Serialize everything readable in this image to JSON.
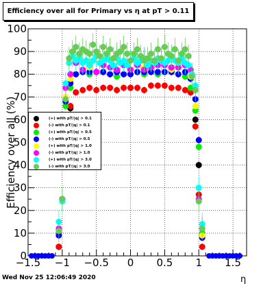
{
  "title": "Efficiency over all for Primary vs   η at pT > 0.11",
  "footer": "Wed Nov 25 12:06:49 2020",
  "chart_data": {
    "type": "scatter",
    "title": "Efficiency over all for Primary vs   η at pT > 0.11",
    "xlabel": "η",
    "ylabel": "Efficiency over all (%)",
    "xlim": [
      -1.5,
      1.7
    ],
    "ylim": [
      0,
      100
    ],
    "xticks": [
      -1.5,
      -1,
      -0.5,
      0,
      0.5,
      1,
      1.5
    ],
    "xtick_labels": [
      "−1.5",
      "−1",
      "−0.5",
      "0",
      "0.5",
      "1",
      "1.5"
    ],
    "yticks": [
      0,
      10,
      20,
      30,
      40,
      50,
      60,
      70,
      80,
      90,
      100
    ],
    "ytick_labels": [
      "0",
      "10",
      "20",
      "30",
      "40",
      "50",
      "60",
      "70",
      "80",
      "90",
      "100"
    ],
    "grid": true,
    "legend_position": "middle-left",
    "series": [
      {
        "name": "(+) with pT/|q| > 0.1",
        "color": "#000000",
        "x": [
          -1.05,
          -1.0,
          -0.95,
          -0.88,
          0.0,
          0.88,
          0.95,
          1.0,
          1.05
        ],
        "y": [
          4,
          25,
          58,
          65,
          74,
          72,
          60,
          40,
          9
        ]
      },
      {
        "name": "(-) with pT/|q| > 0.1",
        "color": "#ff0000",
        "x": [
          -1.05,
          -1.0,
          -0.95,
          -0.88,
          -0.8,
          -0.7,
          -0.6,
          -0.5,
          -0.4,
          -0.3,
          -0.2,
          -0.1,
          0.0,
          0.1,
          0.2,
          0.3,
          0.4,
          0.5,
          0.6,
          0.7,
          0.8,
          0.88,
          0.95,
          1.0,
          1.05
        ],
        "y": [
          4,
          25,
          61,
          66,
          72,
          73,
          74,
          73,
          74,
          74,
          73,
          74,
          74,
          74,
          73,
          75,
          75,
          75,
          74,
          74,
          73,
          72,
          57,
          27,
          4
        ]
      },
      {
        "name": "(+) with pT/|q| > 0.5",
        "color": "#00ee00",
        "x": [
          -1.05,
          -1.0,
          -0.95,
          -0.88,
          -0.8,
          -0.6,
          -0.4,
          -0.2,
          0.0,
          0.2,
          0.4,
          0.6,
          0.8,
          0.88,
          0.95,
          1.0,
          1.05
        ],
        "y": [
          10,
          24,
          66,
          74,
          80,
          80,
          81,
          79,
          80,
          80,
          80,
          81,
          79,
          74,
          64,
          48,
          10
        ]
      },
      {
        "name": "(-) with pT/|q| > 0.5",
        "color": "#0000ff",
        "x": [
          -1.05,
          -1.0,
          -0.95,
          -0.88,
          -0.8,
          -0.7,
          -0.6,
          -0.5,
          -0.4,
          -0.3,
          -0.2,
          -0.1,
          0.0,
          0.1,
          0.2,
          0.3,
          0.4,
          0.5,
          0.6,
          0.7,
          0.8,
          0.88,
          0.95,
          1.0,
          1.05
        ],
        "y": [
          9,
          25,
          68,
          76,
          80,
          81,
          81,
          81,
          81,
          80,
          81,
          80,
          80,
          81,
          81,
          81,
          81,
          81,
          81,
          80,
          81,
          78,
          69,
          51,
          8
        ]
      },
      {
        "name": "(+) with pT/|q| > 1.0",
        "color": "#ffff00",
        "x": [
          -1.05,
          -0.95,
          -0.88,
          -0.6,
          -0.2,
          0.2,
          0.6,
          0.88,
          0.95,
          1.05
        ],
        "y": [
          12,
          70,
          78,
          83,
          82,
          83,
          82,
          79,
          66,
          9
        ]
      },
      {
        "name": "(-) with pT/|q| > 1.0",
        "color": "#ff00ff",
        "x": [
          -1.05,
          -1.0,
          -0.95,
          -0.88,
          -0.8,
          -0.7,
          -0.6,
          -0.5,
          -0.4,
          -0.3,
          -0.2,
          -0.1,
          0.0,
          0.1,
          0.2,
          0.3,
          0.4,
          0.5,
          0.6,
          0.7,
          0.8,
          0.88,
          0.95,
          1.0,
          1.05
        ],
        "y": [
          12,
          25,
          74,
          80,
          85,
          82,
          84,
          81,
          84,
          83,
          82,
          84,
          82,
          84,
          82,
          83,
          84,
          84,
          83,
          83,
          84,
          82,
          73,
          25,
          12
        ]
      },
      {
        "name": "(+) with pT/|q| > 3.0",
        "color": "#00ffff",
        "x": [
          -1.05,
          -1.0,
          -0.95,
          -0.9,
          -0.85,
          -0.8,
          -0.75,
          -0.7,
          -0.65,
          -0.6,
          -0.55,
          -0.5,
          -0.45,
          -0.4,
          -0.35,
          -0.3,
          -0.25,
          -0.2,
          -0.15,
          -0.1,
          -0.05,
          0.0,
          0.05,
          0.1,
          0.15,
          0.2,
          0.25,
          0.3,
          0.35,
          0.4,
          0.45,
          0.5,
          0.55,
          0.6,
          0.65,
          0.7,
          0.75,
          0.8,
          0.85,
          0.9,
          0.95,
          1.0,
          1.05
        ],
        "y": [
          15,
          24,
          76,
          85,
          88,
          86,
          87,
          85,
          86,
          84,
          86,
          88,
          85,
          86,
          87,
          86,
          84,
          87,
          85,
          86,
          84,
          86,
          87,
          85,
          86,
          87,
          84,
          86,
          85,
          87,
          86,
          85,
          86,
          88,
          86,
          85,
          87,
          85,
          84,
          80,
          75,
          30,
          14
        ]
      },
      {
        "name": "(-) with pT/|q| > 3.0",
        "color": "#66cc55",
        "x": [
          -1.05,
          -1.0,
          -0.95,
          -0.9,
          -0.85,
          -0.8,
          -0.75,
          -0.7,
          -0.65,
          -0.6,
          -0.55,
          -0.5,
          -0.45,
          -0.4,
          -0.35,
          -0.3,
          -0.25,
          -0.2,
          -0.15,
          -0.1,
          -0.05,
          0.0,
          0.05,
          0.1,
          0.15,
          0.2,
          0.25,
          0.3,
          0.35,
          0.4,
          0.45,
          0.5,
          0.55,
          0.6,
          0.65,
          0.7,
          0.75,
          0.8,
          0.85,
          0.9,
          0.95,
          1.0,
          1.05
        ],
        "y": [
          11,
          25,
          69,
          87,
          90,
          92,
          89,
          91,
          90,
          89,
          93,
          90,
          88,
          92,
          89,
          91,
          87,
          89,
          90,
          92,
          89,
          86,
          89,
          91,
          88,
          86,
          87,
          89,
          86,
          91,
          87,
          92,
          89,
          88,
          91,
          86,
          89,
          91,
          88,
          79,
          73,
          24,
          12
        ]
      }
    ],
    "outside_points": {
      "color": "#0000ff",
      "x": [
        -1.45,
        -1.4,
        -1.35,
        -1.3,
        -1.25,
        -1.2,
        -1.15,
        1.15,
        1.2,
        1.25,
        1.3,
        1.35,
        1.4,
        1.45,
        1.5,
        1.55,
        1.6
      ],
      "y": [
        0,
        0,
        0,
        0,
        0,
        0,
        0,
        0,
        0,
        0,
        0,
        0,
        0,
        0,
        0,
        0,
        0
      ]
    }
  }
}
